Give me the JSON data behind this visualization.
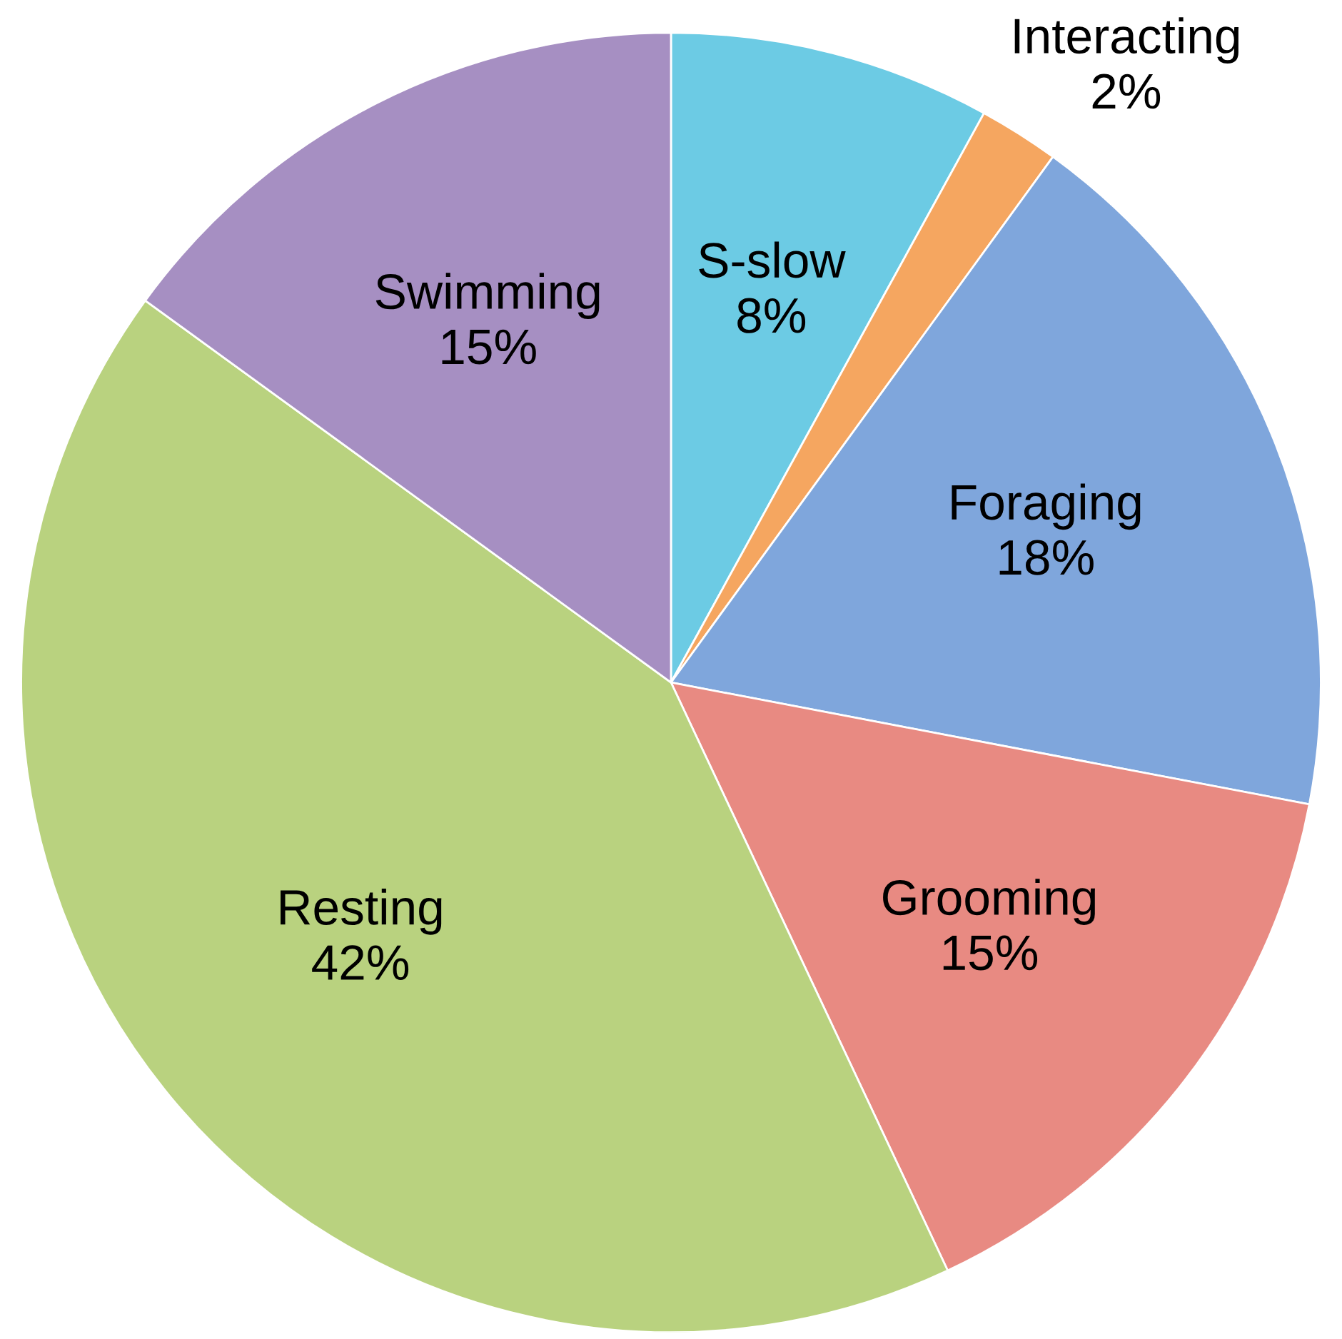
{
  "chart_data": {
    "type": "pie",
    "categories": [
      "S-slow",
      "Interacting",
      "Foraging",
      "Grooming",
      "Resting",
      "Swimming"
    ],
    "values": [
      8,
      2,
      18,
      15,
      42,
      15
    ],
    "value_labels": [
      "8%",
      "2%",
      "18%",
      "15%",
      "42%",
      "15%"
    ],
    "colors": [
      "#6ccbe4",
      "#f5a660",
      "#7fa6dc",
      "#e88a82",
      "#b9d27f",
      "#a68fc2"
    ],
    "legend": false
  }
}
